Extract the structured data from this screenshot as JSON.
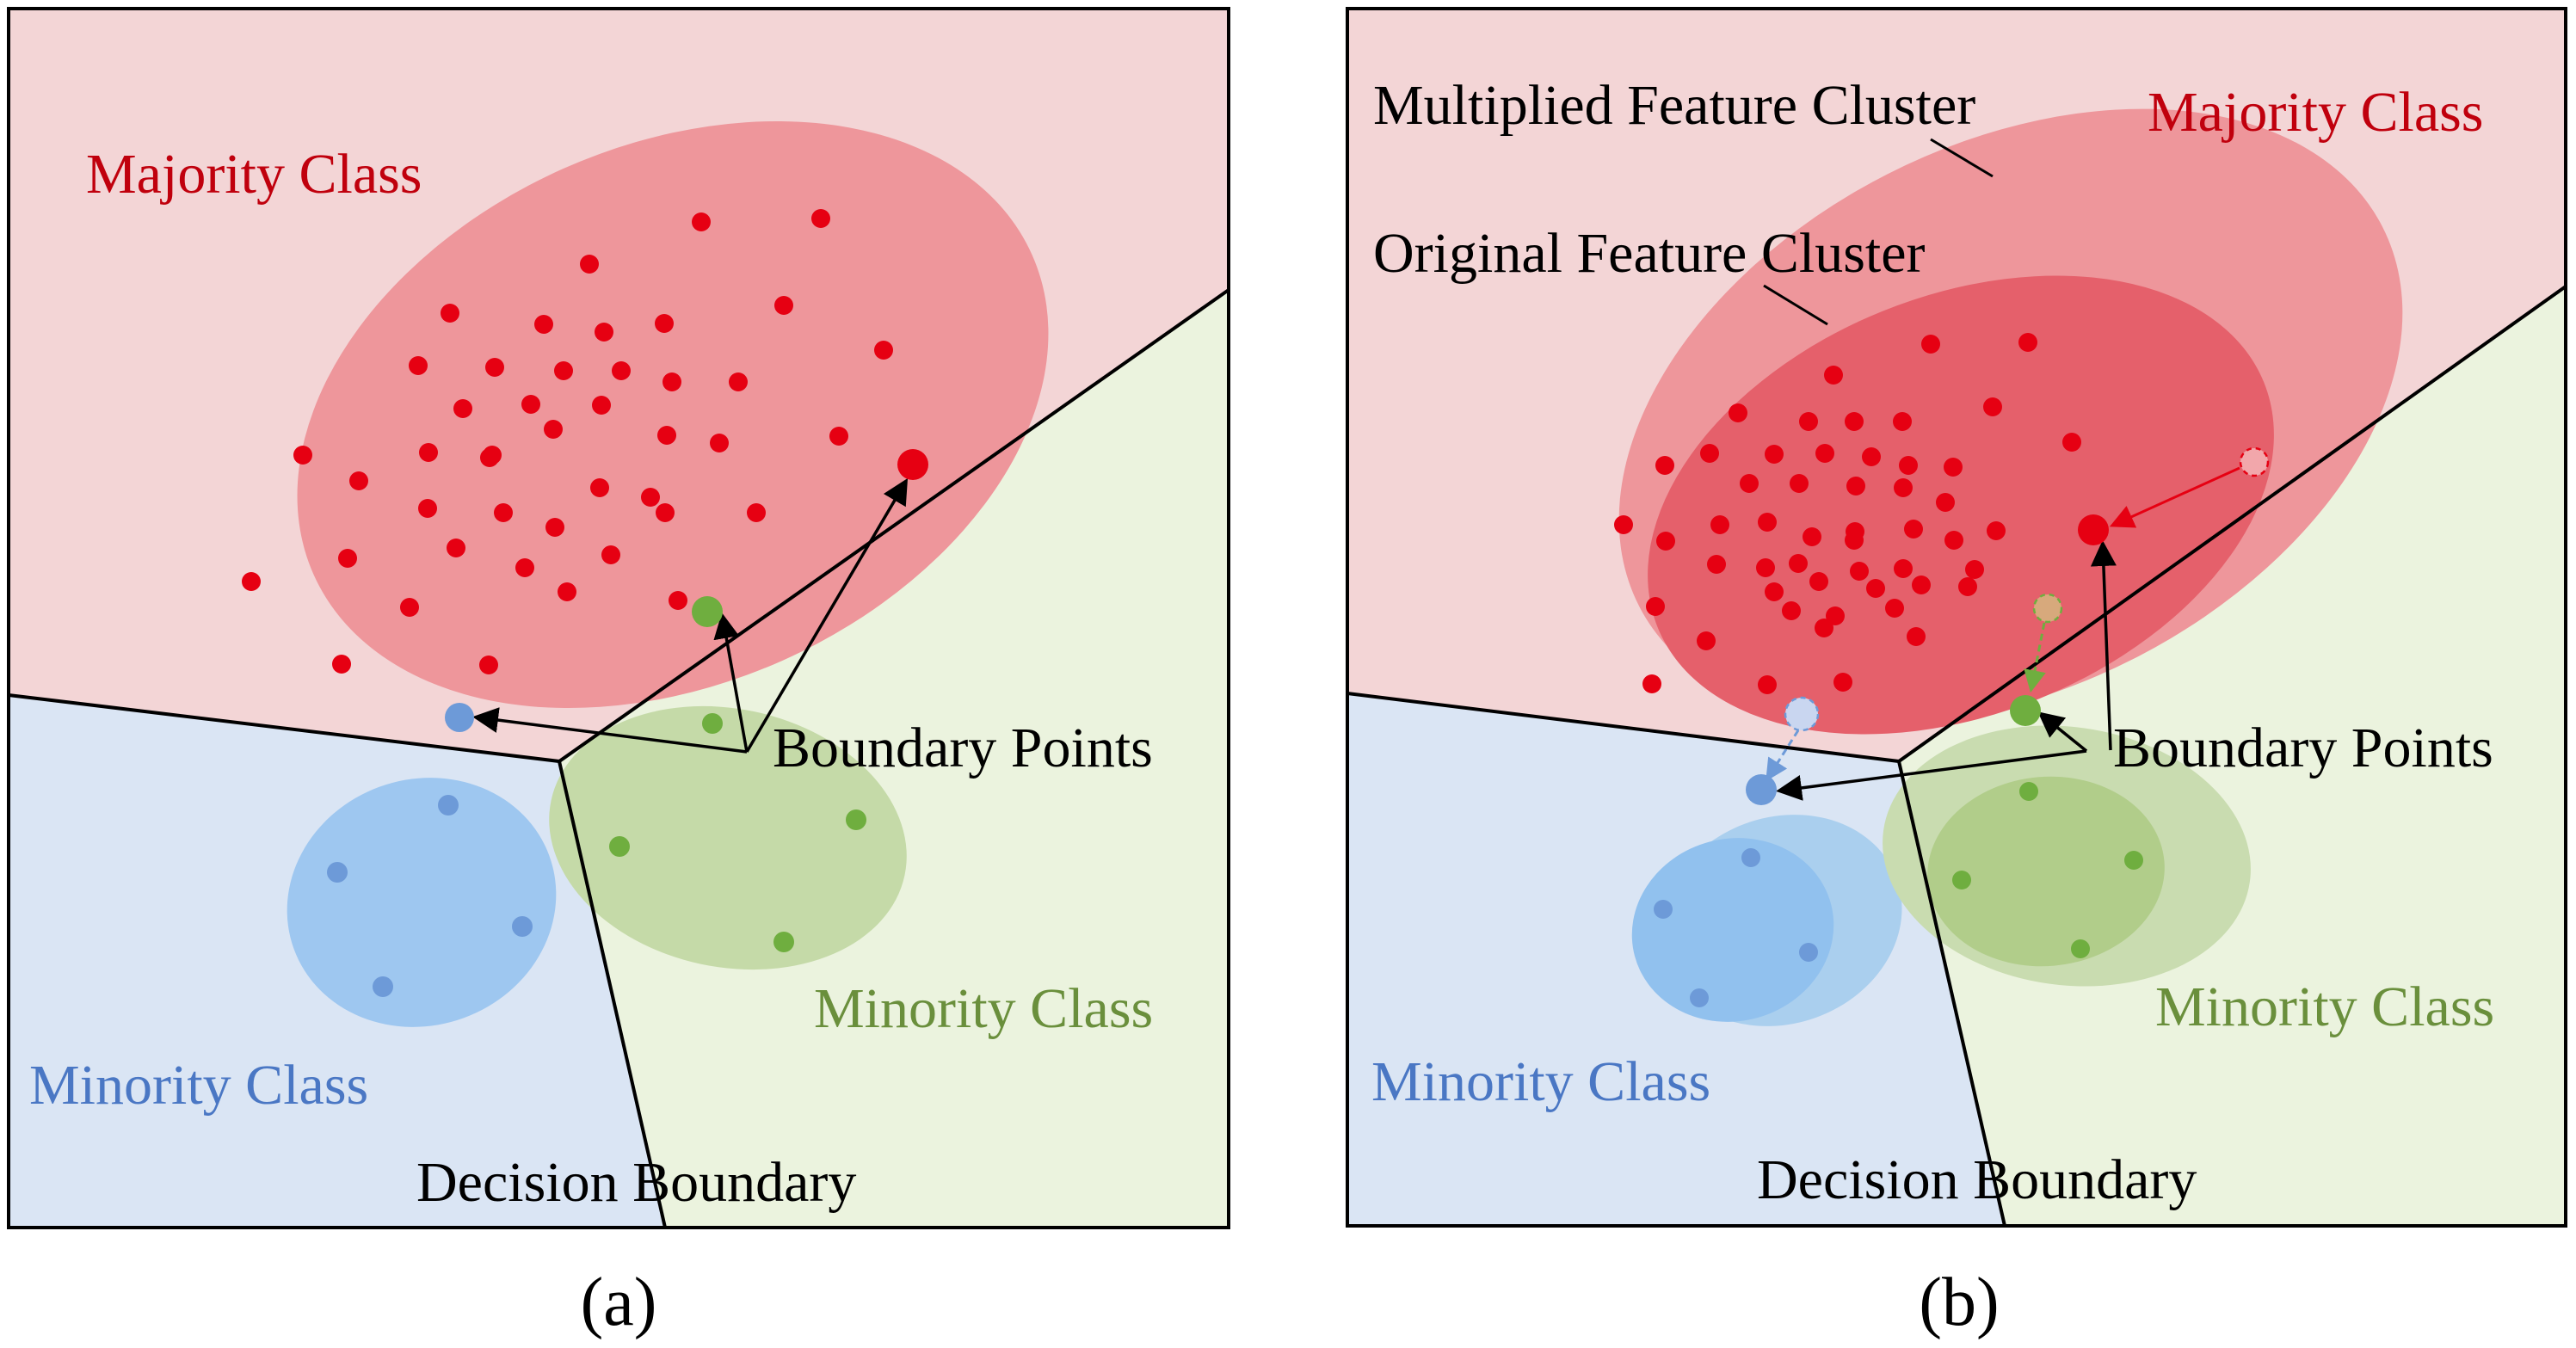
{
  "colors": {
    "majority_region": "#f3d5d6",
    "majority_cluster": "#ee969b",
    "majority_cluster_original": "#e5606b",
    "majority_point": "#e60012",
    "majority_text": "#c0000d",
    "minority_blue_region": "#dae5f4",
    "minority_blue_cluster": "#9ec7f0",
    "minority_blue_point": "#6d9ad8",
    "minority_blue_text": "#4a77c4",
    "minority_green_region": "#ebf3de",
    "minority_green_cluster": "#c5daa8",
    "minority_green_point": "#6fae3f",
    "minority_green_text": "#6a8f3c"
  },
  "panel_a": {
    "majority_label": "Majority Class",
    "minority_blue_label": "Minority Class",
    "minority_green_label": "Minority Class",
    "decision_boundary_label": "Decision Boundary",
    "boundary_points_label": "Boundary Points",
    "caption": "(a)"
  },
  "panel_b": {
    "majority_label": "Majority Class",
    "multiplied_cluster_label": "Multiplied Feature Cluster",
    "original_cluster_label": "Original Feature Cluster",
    "minority_blue_label": "Minority Class",
    "minority_green_label": "Minority Class",
    "decision_boundary_label": "Decision Boundary",
    "boundary_points_label": "Boundary Points",
    "caption": "(b)"
  }
}
